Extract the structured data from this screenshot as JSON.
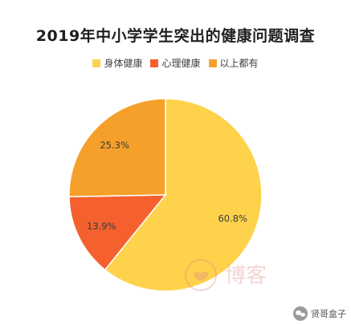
{
  "chart_data": {
    "type": "pie",
    "title": "2019年中小学学生突出的健康问题调查",
    "slices": [
      {
        "name": "身体健康",
        "value": 60.8,
        "label": "60.8%",
        "color": "#FFD24C"
      },
      {
        "name": "心理健康",
        "value": 13.9,
        "label": "13.9%",
        "color": "#F4612E"
      },
      {
        "name": "以上都有",
        "value": 25.3,
        "label": "25.3%",
        "color": "#F5A02A"
      }
    ],
    "start_angle_deg": 0,
    "direction": "clockwise",
    "legend_placement": "top-center"
  },
  "watermark": {
    "text": "博客"
  },
  "badge": {
    "text": "贤哥盒子",
    "icon": "wechat-icon"
  }
}
